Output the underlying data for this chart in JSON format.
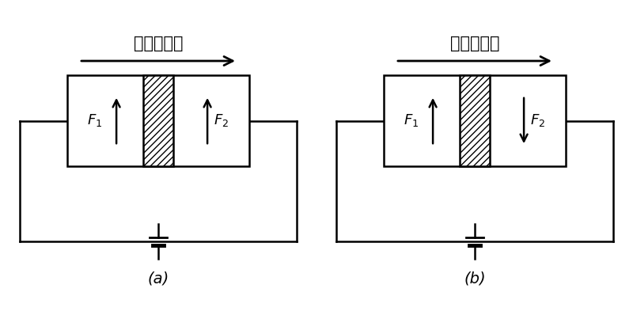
{
  "background_color": "#ffffff",
  "chinese_label": "电子流方向",
  "lw": 1.8,
  "diagrams": [
    {
      "label": "(a)",
      "F1_up": true,
      "F2_up": true
    },
    {
      "label": "(b)",
      "F1_up": true,
      "F2_up": false
    }
  ],
  "fig_width": 8.0,
  "fig_height": 3.98,
  "dpi": 100
}
